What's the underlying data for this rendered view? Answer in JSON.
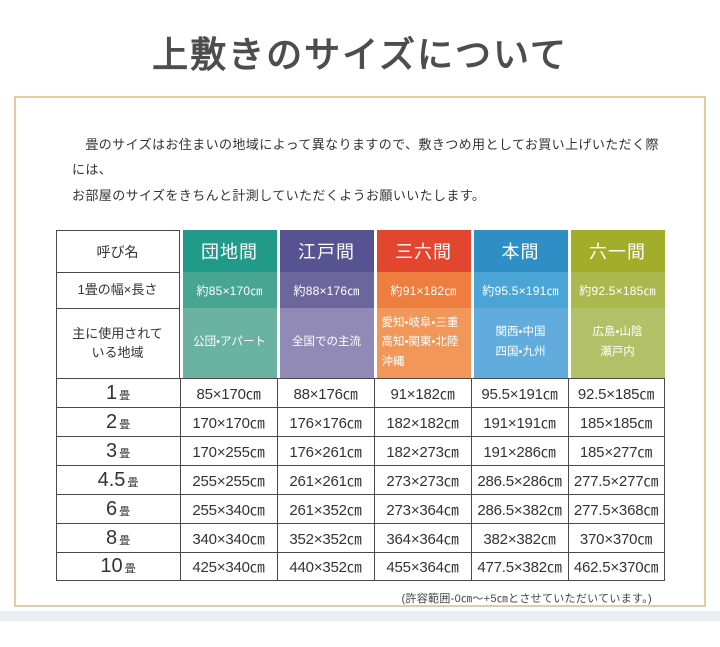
{
  "page": {
    "title": "上敷きのサイズについて"
  },
  "intro": {
    "line1": "　畳のサイズはお住まいの地域によって異なりますので、敷きつめ用としてお買い上げいただく際には、",
    "line2": "お部屋のサイズをきちんと計測していただくようお願いいたします。"
  },
  "table": {
    "corner_label": "呼び名",
    "width_row_label": "1畳の幅×長さ",
    "region_row_label": [
      "主に使用されて",
      "いる地域"
    ],
    "columns": [
      {
        "name": "団地間",
        "width_per_mat": "約85×170㎝",
        "regions": [
          "公団・アパート"
        ],
        "colors": {
          "header": "#219a8a",
          "width_row": "#47a592",
          "region_row": "#6ab3a3"
        }
      },
      {
        "name": "江戸間",
        "width_per_mat": "約88×176㎝",
        "regions": [
          "全国での主流"
        ],
        "colors": {
          "header": "#575292",
          "width_row": "#6d669d",
          "region_row": "#918ab6"
        }
      },
      {
        "name": "三六間",
        "width_per_mat": "約91×182㎝",
        "regions": [
          "愛知・岐阜・三重",
          "高知・関東・北陸",
          "沖縄"
        ],
        "colors": {
          "header": "#e2462e",
          "width_row": "#ee7e3f",
          "region_row": "#f2975a"
        }
      },
      {
        "name": "本間",
        "width_per_mat": "約95.5×191㎝",
        "regions": [
          "関西・中国",
          "四国・九州"
        ],
        "colors": {
          "header": "#2e8ec5",
          "width_row": "#4ba4d6",
          "region_row": "#61acdd"
        }
      },
      {
        "name": "六一間",
        "width_per_mat": "約92.5×185㎝",
        "regions": [
          "広島・山陰",
          "瀬戸内"
        ],
        "colors": {
          "header": "#a2ae29",
          "width_row": "#aab94d",
          "region_row": "#b2c167"
        }
      }
    ],
    "size_rows": [
      {
        "num": "1",
        "unit": "畳",
        "values": [
          "85×170㎝",
          "88×176㎝",
          "91×182㎝",
          "95.5×191㎝",
          "92.5×185㎝"
        ]
      },
      {
        "num": "2",
        "unit": "畳",
        "values": [
          "170×170㎝",
          "176×176㎝",
          "182×182㎝",
          "191×191㎝",
          "185×185㎝"
        ]
      },
      {
        "num": "3",
        "unit": "畳",
        "values": [
          "170×255㎝",
          "176×261㎝",
          "182×273㎝",
          "191×286㎝",
          "185×277㎝"
        ]
      },
      {
        "num": "4.5",
        "unit": "畳",
        "values": [
          "255×255㎝",
          "261×261㎝",
          "273×273㎝",
          "286.5×286㎝",
          "277.5×277㎝"
        ]
      },
      {
        "num": "6",
        "unit": "畳",
        "values": [
          "255×340㎝",
          "261×352㎝",
          "273×364㎝",
          "286.5×382㎝",
          "277.5×368㎝"
        ]
      },
      {
        "num": "8",
        "unit": "畳",
        "values": [
          "340×340㎝",
          "352×352㎝",
          "364×364㎝",
          "382×382㎝",
          "370×370㎝"
        ]
      },
      {
        "num": "10",
        "unit": "畳",
        "values": [
          "425×340㎝",
          "440×352㎝",
          "455×364㎝",
          "477.5×382㎝",
          "462.5×370㎝"
        ]
      }
    ]
  },
  "footer": {
    "note": "(許容範囲-0㎝～+5㎝とさせていただいています。)"
  },
  "theme": {
    "frame_border": "#e2cda3",
    "grid_line": "#4a4a4a",
    "title_color": "#4d4d4d"
  }
}
